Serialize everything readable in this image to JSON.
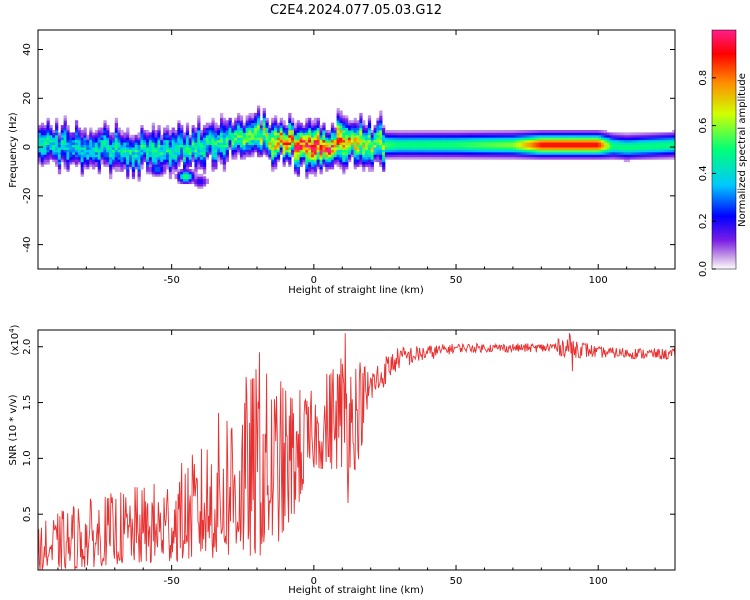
{
  "title": "C2E4.2024.077.05.03.G12",
  "chart_data": [
    {
      "type": "heatmap",
      "xlabel": "Height of straight line (km)",
      "ylabel": "Frequency (Hz)",
      "xlim": [
        -97,
        127
      ],
      "ylim": [
        -50,
        48
      ],
      "xticks": [
        -50,
        0,
        50,
        100
      ],
      "yticks": [
        -40,
        -20,
        0,
        20,
        40
      ],
      "grid": false,
      "colorbar": {
        "label": "Normalized spectral amplitude",
        "range": [
          0,
          1
        ],
        "ticks": [
          "0.0",
          "0.2",
          "0.4",
          "0.6",
          "0.8"
        ],
        "colormap": [
          "#ffffff",
          "#c8a0e6",
          "#7a1ee6",
          "#0000ff",
          "#00c8ff",
          "#00ff78",
          "#d2ff00",
          "#ff8c00",
          "#ff0000",
          "#ff1e8c"
        ]
      },
      "ridge_center_hz": [
        {
          "x": -97,
          "y": 1
        },
        {
          "x": -90,
          "y": 0
        },
        {
          "x": -80,
          "y": -1
        },
        {
          "x": -70,
          "y": -1
        },
        {
          "x": -60,
          "y": -2
        },
        {
          "x": -50,
          "y": -1
        },
        {
          "x": -40,
          "y": 0
        },
        {
          "x": -30,
          "y": 4
        },
        {
          "x": -20,
          "y": 5
        },
        {
          "x": -10,
          "y": 2
        },
        {
          "x": 0,
          "y": 0
        },
        {
          "x": 10,
          "y": 2
        },
        {
          "x": 20,
          "y": 1
        },
        {
          "x": 40,
          "y": 1
        },
        {
          "x": 60,
          "y": 1
        },
        {
          "x": 80,
          "y": 1
        },
        {
          "x": 100,
          "y": 1
        },
        {
          "x": 110,
          "y": 0
        },
        {
          "x": 127,
          "y": 1
        }
      ],
      "ridge_amplitude": [
        {
          "x": -97,
          "a": 0.45
        },
        {
          "x": -80,
          "a": 0.4
        },
        {
          "x": -60,
          "a": 0.45
        },
        {
          "x": -40,
          "a": 0.45
        },
        {
          "x": -20,
          "a": 0.55
        },
        {
          "x": -10,
          "a": 0.8
        },
        {
          "x": 0,
          "a": 0.9
        },
        {
          "x": 10,
          "a": 0.8
        },
        {
          "x": 20,
          "a": 0.6
        },
        {
          "x": 30,
          "a": 0.5
        },
        {
          "x": 50,
          "a": 0.52
        },
        {
          "x": 70,
          "a": 0.6
        },
        {
          "x": 80,
          "a": 0.9
        },
        {
          "x": 100,
          "a": 0.9
        },
        {
          "x": 105,
          "a": 0.5
        },
        {
          "x": 127,
          "a": 0.5
        }
      ],
      "annotations": [
        {
          "x": -45,
          "y": -12,
          "a": 0.55
        },
        {
          "x": -55,
          "y": -9,
          "a": 0.3
        },
        {
          "x": -40,
          "y": -14,
          "a": 0.2
        }
      ]
    },
    {
      "type": "line",
      "xlabel": "Height of straight line (km)",
      "ylabel": "SNR (10 * v/v)",
      "y_scale_label": "(x10",
      "y_scale_exp": "4",
      "y_scale_close": ")",
      "xlim": [
        -97,
        127
      ],
      "ylim": [
        0,
        2.15
      ],
      "xticks": [
        -50,
        0,
        50,
        100
      ],
      "yticks": [
        0.5,
        1.0,
        1.5,
        2.0
      ],
      "yticklabels": [
        "0.5",
        "1.0",
        "1.5",
        "2.0"
      ],
      "color": "#e83030",
      "envelope": [
        {
          "x": -97,
          "min": 0.0,
          "max": 0.4
        },
        {
          "x": -85,
          "min": 0.0,
          "max": 0.6
        },
        {
          "x": -70,
          "min": 0.05,
          "max": 0.7
        },
        {
          "x": -55,
          "min": 0.05,
          "max": 0.8
        },
        {
          "x": -40,
          "min": 0.1,
          "max": 1.1
        },
        {
          "x": -30,
          "min": 0.1,
          "max": 1.6
        },
        {
          "x": -20,
          "min": 0.1,
          "max": 1.85
        },
        {
          "x": -10,
          "min": 0.3,
          "max": 1.7
        },
        {
          "x": 0,
          "min": 0.9,
          "max": 1.6
        },
        {
          "x": 10,
          "min": 0.9,
          "max": 2.05
        },
        {
          "x": 15,
          "min": 0.9,
          "max": 1.95
        },
        {
          "x": 20,
          "min": 1.5,
          "max": 1.85
        },
        {
          "x": 30,
          "min": 1.8,
          "max": 2.0
        },
        {
          "x": 50,
          "min": 1.95,
          "max": 2.03
        },
        {
          "x": 80,
          "min": 1.95,
          "max": 2.03
        },
        {
          "x": 90,
          "min": 1.9,
          "max": 2.1
        },
        {
          "x": 100,
          "min": 1.9,
          "max": 2.0
        },
        {
          "x": 127,
          "min": 1.88,
          "max": 1.98
        }
      ],
      "spikes": [
        {
          "x": 12,
          "y": 0.6
        },
        {
          "x": 11,
          "y": 2.12
        },
        {
          "x": -19,
          "y": 1.95
        },
        {
          "x": 91,
          "y": 1.78
        },
        {
          "x": 90,
          "y": 2.12
        }
      ]
    }
  ]
}
